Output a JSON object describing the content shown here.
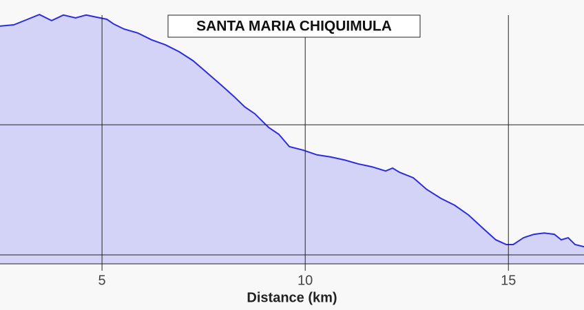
{
  "chart_data": {
    "type": "area",
    "title": "SANTA MARIA CHIQUIMULA",
    "x_label": "Distance (km)",
    "x": [
      2.49,
      2.83,
      3.17,
      3.46,
      3.76,
      4.05,
      4.35,
      4.61,
      4.86,
      5.12,
      5.29,
      5.54,
      5.88,
      6.22,
      6.56,
      6.9,
      7.24,
      7.57,
      7.91,
      8.25,
      8.51,
      8.76,
      9.1,
      9.35,
      9.61,
      9.95,
      10.29,
      10.63,
      10.96,
      11.3,
      11.64,
      11.98,
      12.15,
      12.32,
      12.66,
      12.99,
      13.34,
      13.68,
      14.02,
      14.35,
      14.69,
      14.95,
      15.12,
      15.37,
      15.63,
      15.88,
      16.13,
      16.3,
      16.47,
      16.64,
      16.86
    ],
    "series": [
      {
        "color": "#2b2be0",
        "fill": "#d3d3f7",
        "values": [
          90.1,
          90.6,
          92.7,
          94.5,
          92.2,
          94.3,
          93.2,
          94.3,
          93.5,
          92.7,
          90.9,
          89.0,
          87.5,
          84.9,
          83.0,
          80.4,
          77.0,
          72.6,
          68.1,
          63.4,
          59.5,
          56.9,
          51.7,
          49.1,
          44.4,
          43.1,
          41.3,
          40.5,
          39.4,
          37.9,
          36.8,
          35.2,
          36.3,
          34.7,
          32.6,
          28.2,
          24.8,
          22.2,
          18.5,
          13.8,
          9.1,
          7.3,
          7.3,
          9.9,
          11.2,
          11.7,
          11.2,
          9.1,
          9.9,
          7.3,
          6.5
        ]
      }
    ],
    "xlim": [
      2.49,
      16.86
    ],
    "xticks": [
      5,
      10,
      15
    ],
    "ylim": [
      0,
      100
    ],
    "ygrid": [
      3.4,
      52.7
    ],
    "grid": true
  }
}
